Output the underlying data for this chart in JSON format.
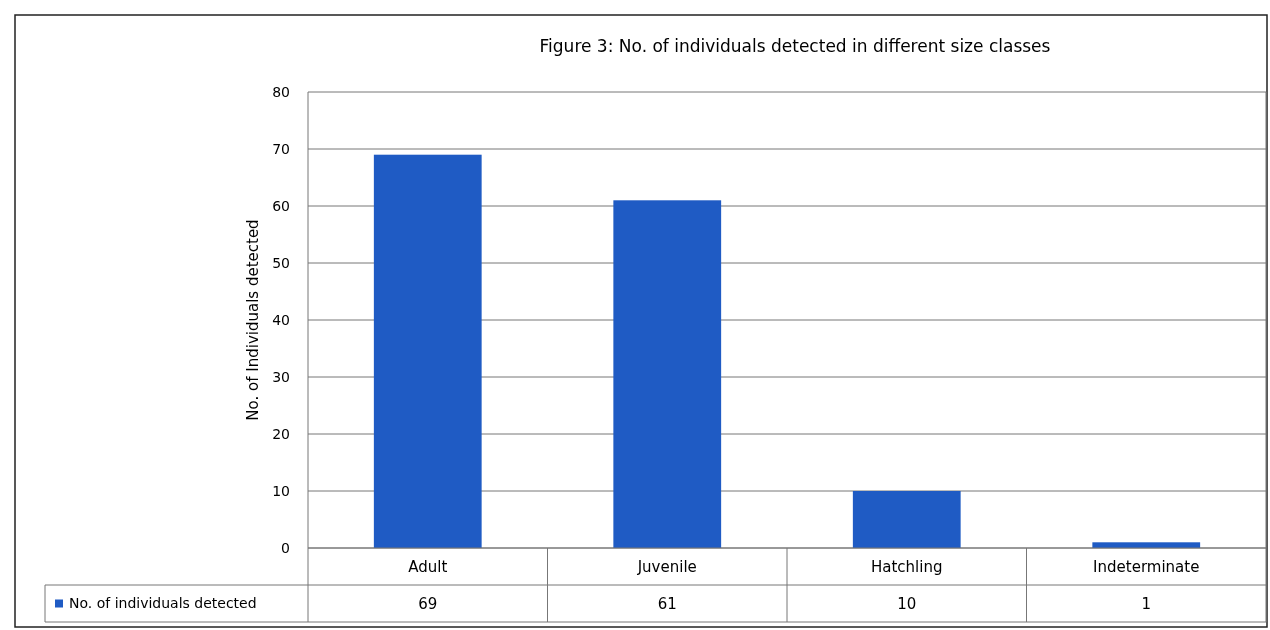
{
  "chart_data": {
    "type": "bar",
    "title": "Figure 3: No. of individuals detected in different size classes",
    "ylabel": "No. of Individuals detected",
    "categories": [
      "Adult",
      "Juvenile",
      "Hatchling",
      "Indeterminate"
    ],
    "series": [
      {
        "name": "No. of individuals detected",
        "color": "#1f5bc4",
        "values": [
          69,
          61,
          10,
          1
        ]
      }
    ],
    "ylim": [
      0,
      80
    ],
    "yticks": [
      0,
      10,
      20,
      30,
      40,
      50,
      60,
      70,
      80
    ],
    "grid": "y",
    "legend": "bottom",
    "data_labels": true
  }
}
